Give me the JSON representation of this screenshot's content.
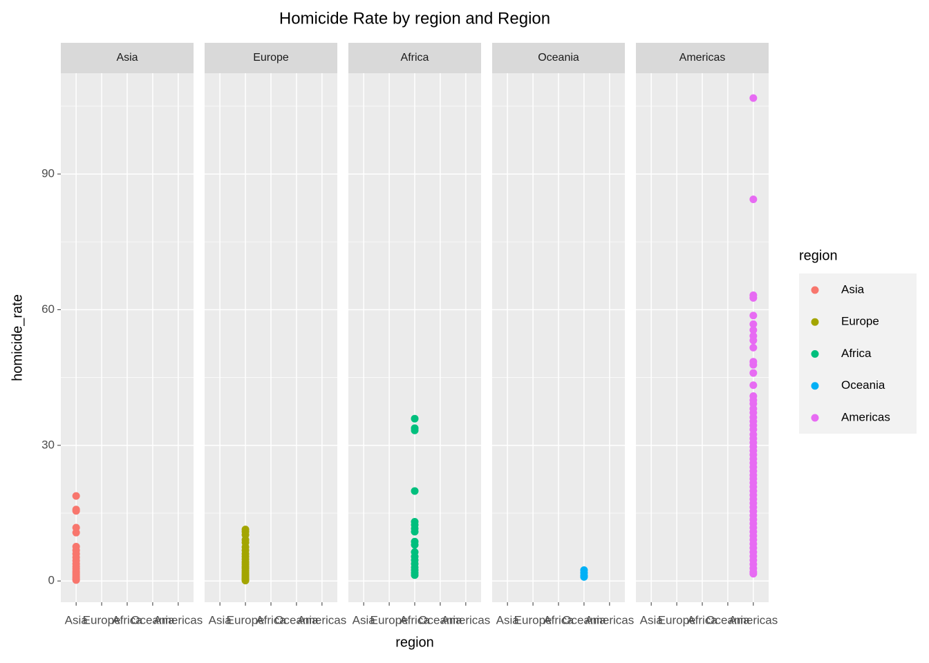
{
  "chart_data": {
    "type": "scatter",
    "title": "Homicide Rate by region and Region",
    "xlabel": "region",
    "ylabel": "homicide_rate",
    "legend_title": "region",
    "legend": "right",
    "grid": true,
    "facets": [
      "Asia",
      "Europe",
      "Africa",
      "Oceania",
      "Americas"
    ],
    "categories": [
      "Asia",
      "Europe",
      "Africa",
      "Oceania",
      "Americas"
    ],
    "ylim": [
      -4.7,
      112.3
    ],
    "yticks": [
      0,
      30,
      60,
      90
    ],
    "series": [
      {
        "name": "Asia",
        "color": "#F8766D",
        "values": [
          18.8,
          15.8,
          15.5,
          11.8,
          10.7,
          7.6,
          6.8,
          6.0,
          5.2,
          4.5,
          3.8,
          3.2,
          2.7,
          2.2,
          1.8,
          1.4,
          1.0,
          0.7,
          0.4,
          0.2
        ]
      },
      {
        "name": "Europe",
        "color": "#A3A500",
        "values": [
          11.4,
          10.9,
          10.2,
          9.1,
          8.5,
          7.5,
          6.8,
          6.0,
          5.4,
          4.8,
          4.2,
          3.7,
          3.2,
          2.8,
          2.3,
          1.9,
          1.5,
          1.2,
          0.9,
          0.6,
          0.4,
          0.2,
          0.1
        ]
      },
      {
        "name": "Africa",
        "color": "#00BF7D",
        "values": [
          35.9,
          33.8,
          33.3,
          19.9,
          13.1,
          12.4,
          11.6,
          10.9,
          8.7,
          8.0,
          6.4,
          5.4,
          4.6,
          3.8,
          3.0,
          2.4,
          1.8,
          1.3
        ]
      },
      {
        "name": "Oceania",
        "color": "#00B0F6",
        "values": [
          2.4,
          1.8,
          1.2,
          0.9
        ]
      },
      {
        "name": "Americas",
        "color": "#E76BF3",
        "values": [
          106.8,
          84.4,
          63.2,
          62.6,
          58.7,
          56.8,
          55.5,
          54.2,
          53.2,
          51.6,
          48.5,
          47.8,
          46.0,
          43.3,
          40.9,
          40.0,
          39.2,
          38.1,
          37.2,
          36.2,
          35.3,
          34.4,
          33.5,
          32.4,
          31.5,
          30.6,
          29.7,
          28.8,
          27.9,
          27.0,
          26.1,
          25.2,
          24.3,
          23.4,
          22.6,
          21.7,
          20.8,
          19.9,
          19.0,
          18.1,
          17.2,
          16.3,
          15.4,
          14.5,
          13.6,
          12.7,
          11.8,
          10.9,
          10.0,
          9.1,
          8.2,
          7.3,
          6.4,
          5.5,
          4.6,
          3.7,
          2.8,
          2.0,
          1.6
        ]
      }
    ]
  }
}
